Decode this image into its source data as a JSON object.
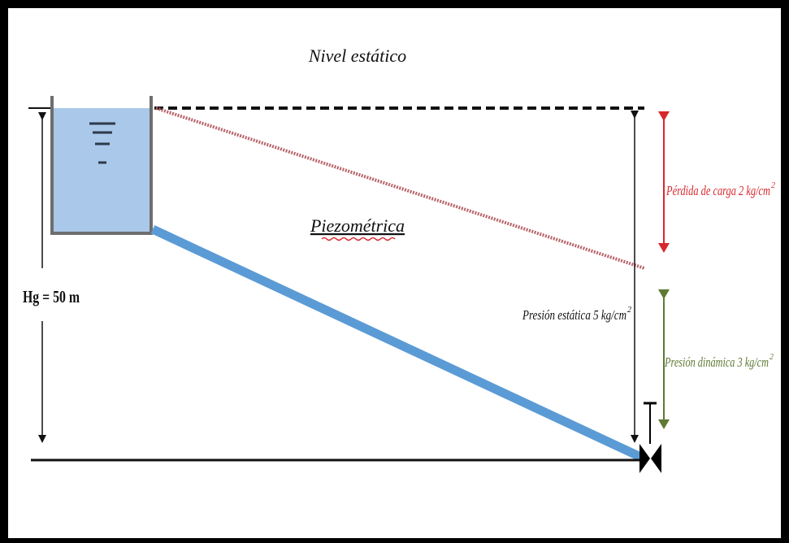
{
  "labels": {
    "static_level": "Nivel estático",
    "piezometric": "Piezométrica",
    "head_loss_text": "Pérdida de carga 2 kg/cm",
    "head_loss_sup": "2",
    "static_pressure_text": "Presión estática 5 kg/cm",
    "static_pressure_sup": "2",
    "dynamic_pressure_text": "Presión dinámica 3 kg/cm",
    "dynamic_pressure_sup": "2",
    "geometric_height": "Hg = 50 m"
  },
  "colors": {
    "water_fill": "#a9c8ea",
    "pipe_blue": "#5b9bd5",
    "piezometric_line": "#b8646b",
    "head_loss_arrow": "#d9272e",
    "dynamic_arrow": "#5f7a34",
    "static_line": "#111111"
  }
}
